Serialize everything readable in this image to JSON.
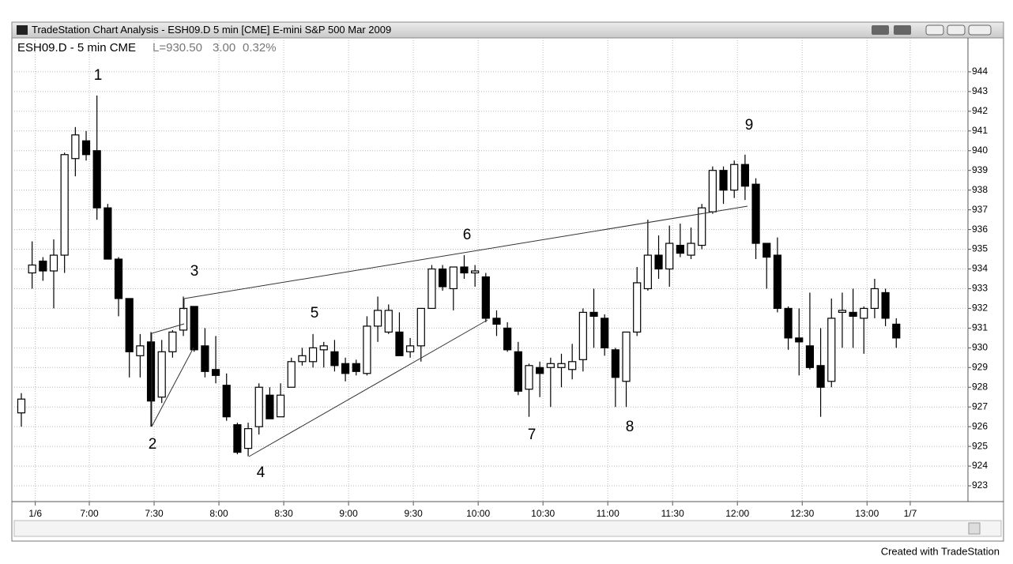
{
  "window_title": "TradeStation Chart Analysis - ESH09.D 5 min [CME] E-mini S&P 500 Mar 2009",
  "footer": "Created with TradeStation",
  "chart_data": {
    "type": "candlestick",
    "symbol": "ESH09.D - 5 min CME",
    "last": "L=930.50",
    "change": "3.00",
    "change_pct": "0.32%",
    "categories": [
      null,
      "1/6",
      null,
      null,
      null,
      null,
      "7:00",
      null,
      null,
      null,
      null,
      null,
      "7:30",
      null,
      null,
      null,
      null,
      null,
      "8:00",
      null,
      null,
      null,
      null,
      null,
      "8:30",
      null,
      null,
      null,
      null,
      null,
      "9:00",
      null,
      null,
      null,
      null,
      null,
      "9:30",
      null,
      null,
      null,
      null,
      null,
      "10:00",
      null,
      null,
      null,
      null,
      null,
      "10:30",
      null,
      null,
      null,
      null,
      null,
      "11:00",
      null,
      null,
      null,
      null,
      null,
      "11:30",
      null,
      null,
      null,
      null,
      null,
      "12:00",
      null,
      null,
      null,
      null,
      null,
      "12:30",
      null,
      null,
      null,
      null,
      null,
      "13:00",
      null,
      null,
      null,
      "1/7"
    ],
    "open": [
      926.7,
      933.8,
      934.4,
      933.9,
      934.7,
      939.6,
      940.5,
      940.0,
      937.1,
      934.5,
      932.5,
      929.6,
      930.3,
      927.5,
      929.8,
      930.9,
      932.1,
      930.1,
      928.9,
      928.1,
      926.1,
      924.9,
      926.0,
      927.6,
      926.5,
      928.0,
      929.3,
      929.3,
      929.9,
      929.8,
      929.2,
      929.2,
      928.7,
      931.1,
      930.8,
      930.8,
      929.8,
      930.1,
      932.0,
      934.0,
      933.0,
      934.1,
      933.8,
      933.6,
      931.5,
      931.0,
      929.8,
      927.9,
      929.0,
      929.0,
      929.0,
      928.9,
      929.4,
      931.8,
      931.5,
      929.9,
      928.3,
      930.8,
      933.0,
      934.7,
      934.0,
      935.2,
      934.7,
      935.2,
      936.9,
      939.0,
      938.0,
      939.3,
      938.3,
      935.3,
      934.7,
      932.0,
      930.5,
      930.1,
      929.1,
      928.3,
      931.8,
      931.8,
      931.5,
      932.0,
      932.8,
      931.2,
      null
    ],
    "high": [
      927.7,
      935.4,
      934.6,
      935.5,
      939.9,
      941.2,
      941.0,
      942.8,
      937.3,
      934.6,
      932.5,
      930.7,
      930.8,
      930.4,
      930.9,
      932.6,
      932.1,
      931.0,
      930.6,
      928.7,
      926.2,
      926.2,
      928.2,
      928.0,
      928.2,
      929.5,
      930.0,
      930.7,
      930.3,
      930.4,
      929.5,
      929.4,
      931.6,
      932.6,
      932.2,
      931.8,
      930.5,
      932.0,
      934.2,
      934.2,
      934.1,
      934.7,
      934.2,
      933.8,
      931.9,
      931.3,
      930.3,
      929.2,
      929.3,
      929.5,
      929.7,
      930.2,
      932.0,
      933.0,
      931.7,
      930.0,
      930.8,
      934.1,
      936.5,
      935.7,
      936.2,
      936.3,
      936.1,
      937.3,
      939.2,
      939.2,
      939.5,
      939.8,
      938.6,
      935.3,
      935.6,
      932.1,
      932.0,
      932.8,
      931.0,
      932.5,
      932.8,
      933.0,
      932.1,
      933.5,
      933.0,
      931.5,
      null
    ],
    "low": [
      926.0,
      933.0,
      933.4,
      932.0,
      933.8,
      938.7,
      939.5,
      936.5,
      934.5,
      931.6,
      928.5,
      928.5,
      926.0,
      927.2,
      929.5,
      930.6,
      929.8,
      928.5,
      928.2,
      926.3,
      924.6,
      924.5,
      925.6,
      926.4,
      926.5,
      928.0,
      929.1,
      929.0,
      929.0,
      928.8,
      928.3,
      928.6,
      928.6,
      930.3,
      930.7,
      929.6,
      929.5,
      929.3,
      932.0,
      932.9,
      931.9,
      933.5,
      933.1,
      931.3,
      930.6,
      929.8,
      927.6,
      926.5,
      927.5,
      927.0,
      928.0,
      928.4,
      928.8,
      930.0,
      929.6,
      927.0,
      927.0,
      930.6,
      932.9,
      933.5,
      933.1,
      934.6,
      934.5,
      935.0,
      936.8,
      937.3,
      937.6,
      937.5,
      934.5,
      933.0,
      931.8,
      929.9,
      928.6,
      928.9,
      926.5,
      928.0,
      930.0,
      930.0,
      929.7,
      931.5,
      931.1,
      930.0,
      null
    ],
    "close": [
      927.4,
      934.2,
      933.9,
      934.7,
      939.8,
      940.8,
      939.8,
      937.1,
      934.5,
      932.5,
      929.8,
      930.1,
      927.3,
      929.8,
      930.8,
      932.0,
      929.9,
      928.8,
      928.6,
      926.5,
      924.7,
      925.9,
      928.0,
      926.4,
      927.6,
      929.3,
      929.6,
      930.0,
      930.1,
      929.1,
      928.7,
      928.8,
      931.1,
      931.9,
      931.9,
      929.6,
      930.1,
      932.0,
      934.0,
      933.1,
      934.1,
      933.8,
      933.9,
      931.5,
      931.2,
      929.9,
      927.8,
      929.1,
      928.7,
      929.2,
      929.2,
      929.3,
      931.8,
      931.6,
      930.0,
      928.5,
      930.8,
      933.3,
      934.7,
      934.0,
      935.3,
      934.8,
      935.3,
      937.1,
      939.0,
      938.0,
      939.3,
      938.2,
      935.3,
      934.6,
      932.0,
      930.5,
      930.3,
      929.0,
      928.0,
      931.5,
      931.9,
      931.6,
      932.0,
      933.0,
      931.5,
      930.5,
      null
    ],
    "up_color": "#ffffff",
    "down_color": "#000000",
    "ylim": [
      922.32,
      945.56
    ],
    "yticks": [
      923,
      924,
      925,
      926,
      927,
      928,
      929,
      930,
      931,
      932,
      933,
      934,
      935,
      936,
      937,
      938,
      939,
      940,
      941,
      942,
      943,
      944
    ],
    "grid": true,
    "annotations": [
      "1",
      "2",
      "3",
      "4",
      "5",
      "6",
      "7",
      "8",
      "9"
    ]
  }
}
